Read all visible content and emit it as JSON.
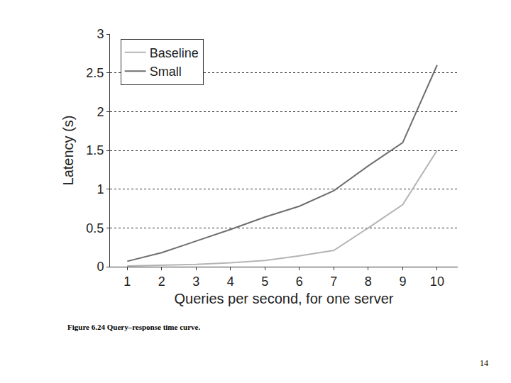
{
  "chart_data": {
    "type": "line",
    "x_label": "Queries per second, for one server",
    "y_label": "Latency (s)",
    "x": [
      1,
      2,
      3,
      4,
      5,
      6,
      7,
      8,
      9,
      10
    ],
    "series": [
      {
        "name": "Baseline",
        "color": "#b4b4b4",
        "values": [
          0.01,
          0.02,
          0.03,
          0.05,
          0.08,
          0.14,
          0.21,
          0.5,
          0.8,
          1.5
        ]
      },
      {
        "name": "Small",
        "color": "#6e6e6e",
        "values": [
          0.07,
          0.18,
          0.33,
          0.48,
          0.64,
          0.78,
          0.98,
          1.3,
          1.6,
          2.6
        ]
      }
    ],
    "xlim": [
      0.5,
      10.6
    ],
    "xticks": [
      1,
      2,
      3,
      4,
      5,
      6,
      7,
      8,
      9,
      10
    ],
    "ylim": [
      0,
      3
    ],
    "yticks": [
      0,
      0.5,
      1,
      1.5,
      2,
      2.5,
      3
    ],
    "grid": true,
    "legend": "upper left"
  },
  "caption": "Figure 6.24 Query–response time curve.",
  "page_number": "14"
}
